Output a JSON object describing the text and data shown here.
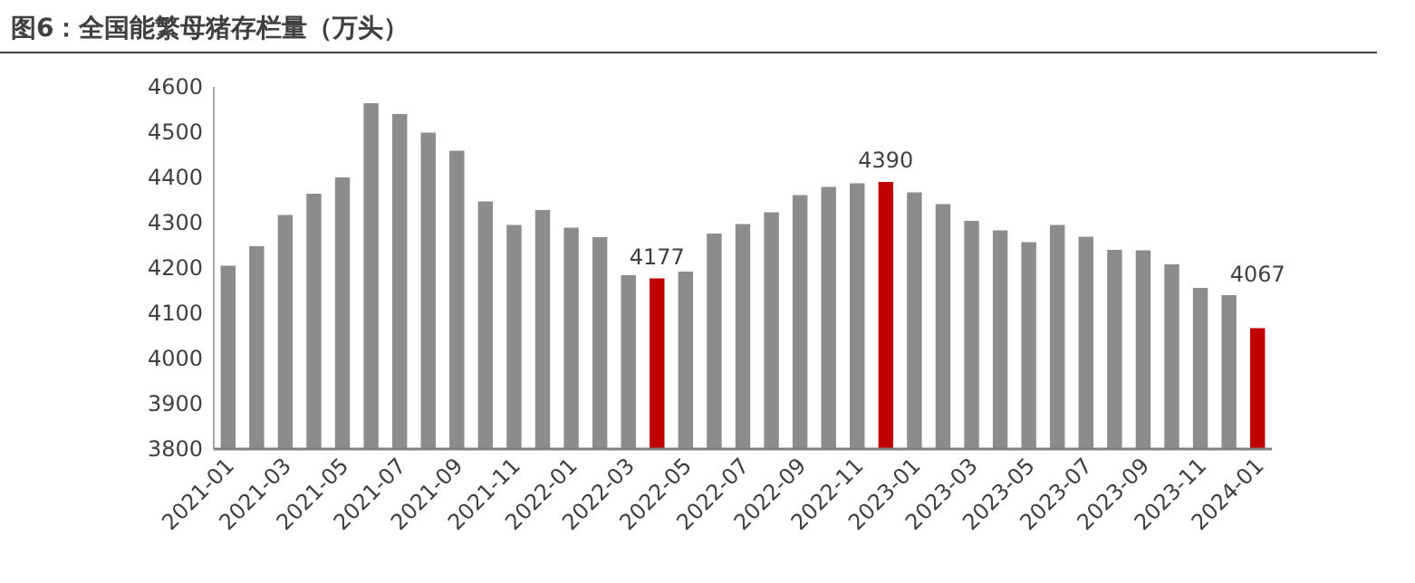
{
  "chart_data": {
    "type": "bar",
    "title": "图6：全国能繁母猪存栏量（万头）",
    "categories": [
      "2021-01",
      null,
      "2021-03",
      null,
      "2021-05",
      null,
      "2021-07",
      null,
      "2021-09",
      null,
      "2021-11",
      null,
      "2022-01",
      null,
      "2022-03",
      null,
      "2022-05",
      null,
      "2022-07",
      null,
      "2022-09",
      null,
      "2022-11",
      null,
      "2023-01",
      null,
      "2023-03",
      null,
      "2023-05",
      null,
      "2023-07",
      null,
      "2023-09",
      null,
      "2023-11",
      null,
      "2024-01"
    ],
    "values": [
      4205,
      4248,
      4317,
      4364,
      4400,
      4564,
      4540,
      4499,
      4459,
      4347,
      4295,
      4328,
      4289,
      4268,
      4184,
      4177,
      4192,
      4276,
      4297,
      4323,
      4361,
      4379,
      4387,
      4390,
      4367,
      4341,
      4304,
      4283,
      4257,
      4295,
      4269,
      4240,
      4239,
      4208,
      4156,
      4140,
      4067
    ],
    "colors": [
      "#8c8c8c",
      "#8c8c8c",
      "#8c8c8c",
      "#8c8c8c",
      "#8c8c8c",
      "#8c8c8c",
      "#8c8c8c",
      "#8c8c8c",
      "#8c8c8c",
      "#8c8c8c",
      "#8c8c8c",
      "#8c8c8c",
      "#8c8c8c",
      "#8c8c8c",
      "#8c8c8c",
      "#c00000",
      "#8c8c8c",
      "#8c8c8c",
      "#8c8c8c",
      "#8c8c8c",
      "#8c8c8c",
      "#8c8c8c",
      "#8c8c8c",
      "#c00000",
      "#8c8c8c",
      "#8c8c8c",
      "#8c8c8c",
      "#8c8c8c",
      "#8c8c8c",
      "#8c8c8c",
      "#8c8c8c",
      "#8c8c8c",
      "#8c8c8c",
      "#8c8c8c",
      "#8c8c8c",
      "#8c8c8c",
      "#c00000"
    ],
    "value_labels": [
      null,
      null,
      null,
      null,
      null,
      null,
      null,
      null,
      null,
      null,
      null,
      null,
      null,
      null,
      null,
      "4177",
      null,
      null,
      null,
      null,
      null,
      null,
      null,
      "4390",
      null,
      null,
      null,
      null,
      null,
      null,
      null,
      null,
      null,
      null,
      null,
      null,
      "4067"
    ],
    "ylim": [
      3800,
      4600
    ],
    "yticks": [
      3800,
      3900,
      4000,
      4100,
      4200,
      4300,
      4400,
      4500,
      4600
    ]
  }
}
